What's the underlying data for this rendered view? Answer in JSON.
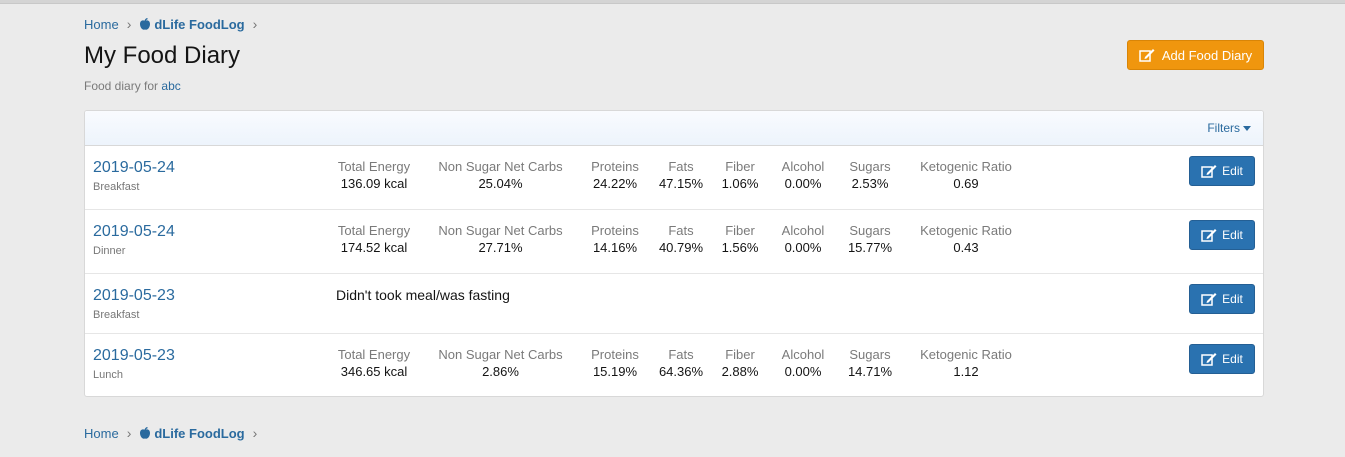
{
  "breadcrumb": {
    "home": "Home",
    "app": "dLife FoodLog"
  },
  "page": {
    "title": "My Food Diary",
    "subtitle_prefix": "Food diary for",
    "user": "abc"
  },
  "add_button": {
    "label": "Add Food Diary"
  },
  "filters": {
    "label": "Filters"
  },
  "labels": {
    "energy": "Total Energy",
    "carbs": "Non Sugar Net Carbs",
    "proteins": "Proteins",
    "fats": "Fats",
    "fiber": "Fiber",
    "alcohol": "Alcohol",
    "sugars": "Sugars",
    "keto": "Ketogenic Ratio",
    "edit": "Edit"
  },
  "entries": [
    {
      "date": "2019-05-24",
      "meal": "Breakfast",
      "energy": "136.09 kcal",
      "carbs": "25.04%",
      "proteins": "24.22%",
      "fats": "47.15%",
      "fiber": "1.06%",
      "alcohol": "0.00%",
      "sugars": "2.53%",
      "keto": "0.69"
    },
    {
      "date": "2019-05-24",
      "meal": "Dinner",
      "energy": "174.52 kcal",
      "carbs": "27.71%",
      "proteins": "14.16%",
      "fats": "40.79%",
      "fiber": "1.56%",
      "alcohol": "0.00%",
      "sugars": "15.77%",
      "keto": "0.43"
    },
    {
      "date": "2019-05-23",
      "meal": "Breakfast",
      "note": "Didn't took meal/was fasting"
    },
    {
      "date": "2019-05-23",
      "meal": "Lunch",
      "energy": "346.65 kcal",
      "carbs": "2.86%",
      "proteins": "15.19%",
      "fats": "64.36%",
      "fiber": "2.88%",
      "alcohol": "0.00%",
      "sugars": "14.71%",
      "keto": "1.12"
    }
  ],
  "colors": {
    "accent": "#2a72b0",
    "link": "#2a6a9e",
    "add": "#f0960e"
  }
}
